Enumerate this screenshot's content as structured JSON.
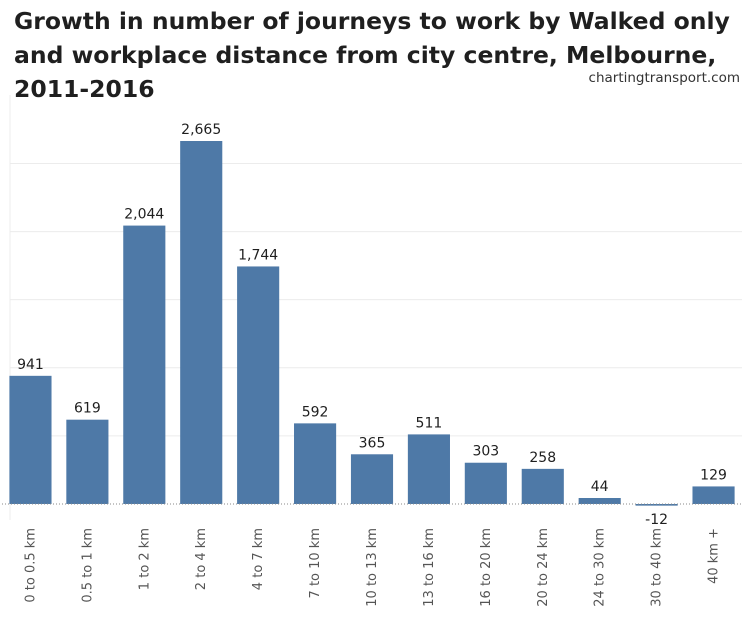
{
  "chart_data": {
    "type": "bar",
    "title": "Growth in number of journeys to work by Walked only and workplace distance from city centre, Melbourne, 2011-2016",
    "source": "chartingtransport.com",
    "xlabel": "",
    "ylabel": "",
    "categories": [
      "0 to 0.5 km",
      "0.5 to 1 km",
      "1 to 2 km",
      "2 to 4 km",
      "4 to 7 km",
      "7 to 10 km",
      "10 to 13 km",
      "13 to 16 km",
      "16 to 20 km",
      "20 to 24 km",
      "24 to 30 km",
      "30 to 40 km",
      "40 km +"
    ],
    "values": [
      941,
      619,
      2044,
      2665,
      1744,
      592,
      365,
      511,
      303,
      258,
      44,
      -12,
      129
    ],
    "value_labels": [
      "941",
      "619",
      "2,044",
      "2,665",
      "1,744",
      "592",
      "365",
      "511",
      "303",
      "258",
      "44",
      "-12",
      "129"
    ],
    "ylim": [
      -50,
      2900
    ],
    "gridlines": [
      500,
      1000,
      1500,
      2000,
      2500
    ],
    "grid": true,
    "bar_color": "#4e79a7"
  }
}
